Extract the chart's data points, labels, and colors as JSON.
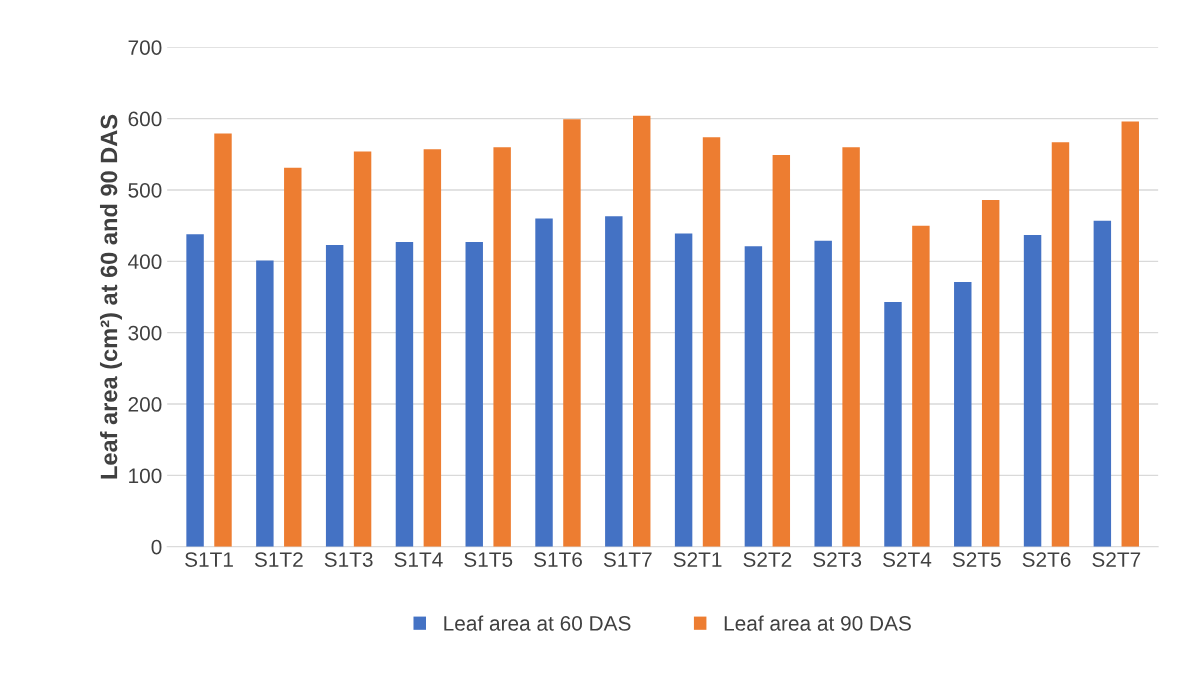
{
  "chart_data": {
    "type": "bar",
    "ylabel": "Leaf area (cm²) at 60 and 90 DAS",
    "categories": [
      "S1T1",
      "S1T2",
      "S1T3",
      "S1T4",
      "S1T5",
      "S1T6",
      "S1T7",
      "S2T1",
      "S2T2",
      "S2T3",
      "S2T4",
      "S2T5",
      "S2T6",
      "S2T7"
    ],
    "series": [
      {
        "name": "Leaf area at 60 DAS",
        "color": "#4472c4",
        "values": [
          438,
          401,
          423,
          427,
          427,
          460,
          463,
          439,
          421,
          429,
          343,
          371,
          437,
          457
        ]
      },
      {
        "name": "Leaf area at 90 DAS",
        "color": "#ed7d31",
        "values": [
          579,
          531,
          554,
          557,
          560,
          599,
          604,
          574,
          549,
          560,
          450,
          486,
          567,
          596
        ]
      }
    ],
    "ylim": [
      0,
      700
    ],
    "yticks": [
      0,
      100,
      200,
      300,
      400,
      500,
      600,
      700
    ],
    "grid": "y",
    "legend": "bottom"
  }
}
